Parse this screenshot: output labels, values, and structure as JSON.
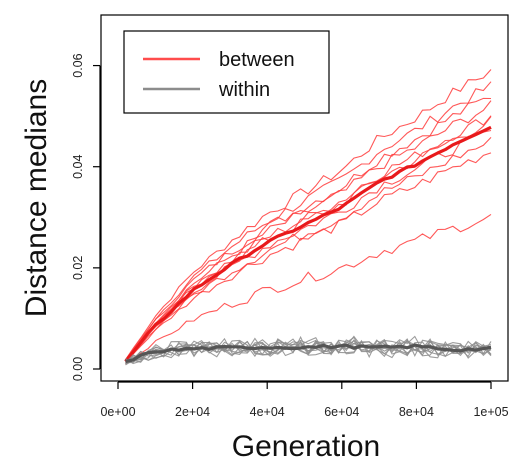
{
  "chart_data": {
    "type": "line",
    "xlabel": "Generation",
    "ylabel": "Distance medians",
    "xlim": [
      0,
      100000
    ],
    "ylim": [
      0,
      0.07
    ],
    "x_ticks": [
      0,
      20000,
      40000,
      60000,
      80000,
      100000
    ],
    "x_tick_labels": [
      "0e+00",
      "2e+04",
      "4e+04",
      "6e+04",
      "8e+04",
      "1e+05"
    ],
    "y_ticks": [
      0,
      0.02,
      0.04,
      0.06
    ],
    "y_tick_labels": [
      "0.00",
      "0.02",
      "0.04",
      "0.06"
    ],
    "grid": false,
    "legend": {
      "placement": "top-left",
      "entries": [
        {
          "label": "between",
          "color": "#ff4c4c"
        },
        {
          "label": "within",
          "color": "#8c8c8c"
        }
      ]
    },
    "groups": [
      {
        "name": "between",
        "color": "#ff3b3b",
        "mean_color": "#e8191b",
        "replicates_final": [
          0.059,
          0.056,
          0.054,
          0.052,
          0.05,
          0.049,
          0.047,
          0.045,
          0.043,
          0.03
        ],
        "mean": {
          "x": [
            2000,
            10000,
            20000,
            30000,
            40000,
            50000,
            60000,
            70000,
            80000,
            90000,
            100000
          ],
          "y": [
            0.0015,
            0.0085,
            0.0155,
            0.0205,
            0.025,
            0.0285,
            0.032,
            0.037,
            0.0405,
            0.0445,
            0.048
          ]
        }
      },
      {
        "name": "within",
        "color": "#8c8c8c",
        "mean_color": "#555555",
        "replicates_final": [
          0.006,
          0.005,
          0.005,
          0.004,
          0.004,
          0.004,
          0.003,
          0.003,
          0.003,
          0.002
        ],
        "mean": {
          "x": [
            2000,
            10000,
            20000,
            30000,
            40000,
            50000,
            60000,
            70000,
            80000,
            90000,
            100000
          ],
          "y": [
            0.0015,
            0.0035,
            0.004,
            0.0042,
            0.0043,
            0.0043,
            0.0045,
            0.0042,
            0.0045,
            0.0038,
            0.004
          ]
        }
      }
    ]
  }
}
